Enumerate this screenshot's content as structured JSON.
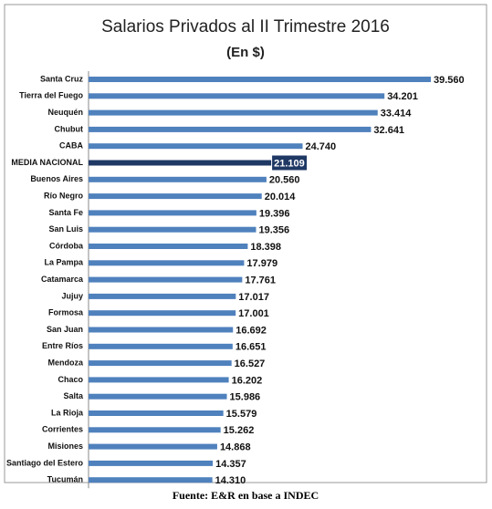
{
  "chart_data": {
    "type": "hbar",
    "title": "Salarios Privados al II Trimestre 2016",
    "subtitle": "(En $)",
    "source": "Fuente: E&R en base a INDEC",
    "categories": [
      "Santa Cruz",
      "Tierra del Fuego",
      "Neuquén",
      "Chubut",
      "CABA",
      "MEDIA NACIONAL",
      "Buenos Aires",
      "Río Negro",
      "Santa Fe",
      "San Luis",
      "Córdoba",
      "La Pampa",
      "Catamarca",
      "Jujuy",
      "Formosa",
      "San Juan",
      "Entre Ríos",
      "Mendoza",
      "Chaco",
      "Salta",
      "La Rioja",
      "Corrientes",
      "Misiones",
      "Santiago del Estero",
      "Tucumán"
    ],
    "values": [
      39560,
      34201,
      33414,
      32641,
      24740,
      21109,
      20560,
      20014,
      19396,
      19356,
      18398,
      17979,
      17761,
      17017,
      17001,
      16692,
      16651,
      16527,
      16202,
      15986,
      15579,
      15262,
      14868,
      14357,
      14310
    ],
    "value_labels": [
      "39.560",
      "34.201",
      "33.414",
      "32.641",
      "24.740",
      "21.109",
      "20.560",
      "20.014",
      "19.396",
      "19.356",
      "18.398",
      "17.979",
      "17.761",
      "17.017",
      "17.001",
      "16.692",
      "16.651",
      "16.527",
      "16.202",
      "15.986",
      "15.579",
      "15.262",
      "14.868",
      "14.357",
      "14.310"
    ],
    "color": "#4f81bd",
    "highlight_index": 5,
    "highlight_color": "#1f3864"
  }
}
